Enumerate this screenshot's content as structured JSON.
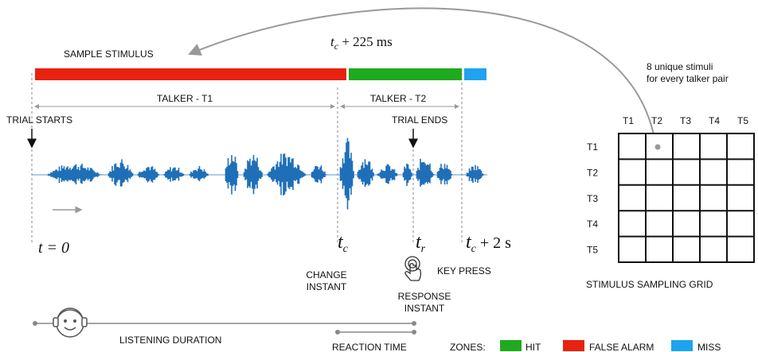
{
  "stimulus": {
    "title": "SAMPLE STIMULUS",
    "marker": {
      "base": "t",
      "sub": "c",
      "rest": " + 225 ms"
    },
    "talker1": "TALKER - T1",
    "talker2": "TALKER - T2",
    "trial_starts": "TRIAL STARTS",
    "trial_ends": "TRIAL ENDS"
  },
  "times": {
    "t0": "t = 0",
    "tc": {
      "base": "t",
      "sub": "c"
    },
    "tr": {
      "base": "t",
      "sub": "r"
    },
    "tc2": {
      "base": "t",
      "sub": "c",
      "rest": " + 2 s"
    }
  },
  "events": {
    "change": [
      "CHANGE",
      "INSTANT"
    ],
    "key_press": "KEY PRESS",
    "response": [
      "RESPONSE",
      "INSTANT"
    ]
  },
  "durations": {
    "listening": "LISTENING DURATION",
    "reaction": "REACTION TIME"
  },
  "legend": {
    "title": "ZONES:",
    "hit": "HIT",
    "false_alarm": "FALSE ALARM",
    "miss": "MISS"
  },
  "grid": {
    "note": [
      "8 unique stimuli",
      "for every talker pair"
    ],
    "columns": [
      "T1",
      "T2",
      "T3",
      "T4",
      "T5"
    ],
    "rows": [
      "T1",
      "T2",
      "T3",
      "T4",
      "T5"
    ],
    "caption": "STIMULUS SAMPLING GRID"
  }
}
